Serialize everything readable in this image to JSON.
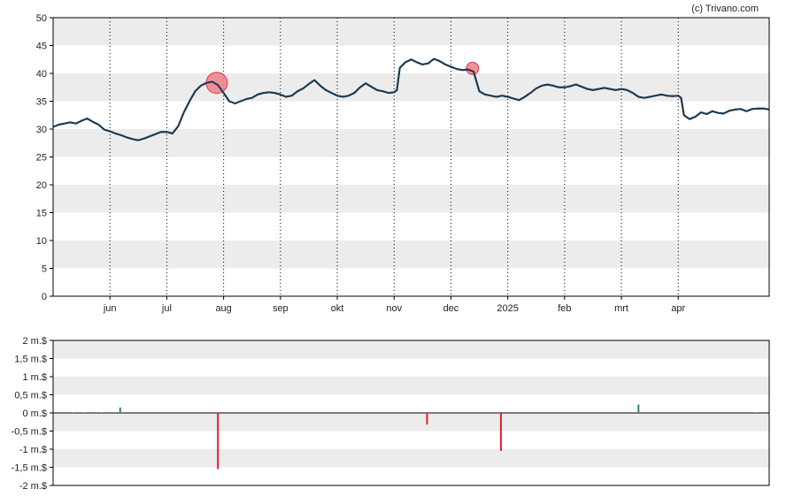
{
  "credit": "(c) Trivano.com",
  "colors": {
    "line": "#1b3a52",
    "band": "#ececec",
    "marker": "#f07f86",
    "marker_stroke": "#d63c49",
    "buy": "#2e8b57",
    "sell": "#e0202d",
    "axis": "#000000"
  },
  "chart_data": [
    {
      "type": "line",
      "title": "",
      "ylim": [
        0,
        50
      ],
      "yticks": [
        "0",
        "5",
        "10",
        "15",
        "20",
        "25",
        "30",
        "35",
        "40",
        "45",
        "50"
      ],
      "xlim": [
        0,
        12.6
      ],
      "xticks": [
        {
          "label": "jun",
          "x": 1.0
        },
        {
          "label": "jul",
          "x": 2.0
        },
        {
          "label": "aug",
          "x": 3.0
        },
        {
          "label": "sep",
          "x": 4.0
        },
        {
          "label": "okt",
          "x": 5.0
        },
        {
          "label": "nov",
          "x": 6.0
        },
        {
          "label": "dec",
          "x": 7.0
        },
        {
          "label": "2025",
          "x": 8.0
        },
        {
          "label": "feb",
          "x": 9.0
        },
        {
          "label": "mrt",
          "x": 10.0
        },
        {
          "label": "apr",
          "x": 11.0
        }
      ],
      "grid": "alternating horizontal bands with dotted vertical month lines",
      "series": [
        {
          "x": [
            0.0,
            0.1,
            0.2,
            0.3,
            0.4,
            0.5,
            0.6,
            0.7,
            0.8,
            0.9,
            1.0,
            1.1,
            1.2,
            1.3,
            1.4,
            1.5,
            1.6,
            1.7,
            1.8,
            1.9,
            2.0,
            2.1,
            2.2,
            2.3,
            2.4,
            2.5,
            2.6,
            2.7,
            2.8,
            2.9,
            3.0,
            3.1,
            3.2,
            3.3,
            3.4,
            3.5,
            3.6,
            3.7,
            3.8,
            3.9,
            4.0,
            4.1,
            4.2,
            4.3,
            4.4,
            4.5,
            4.6,
            4.7,
            4.8,
            4.9,
            5.0,
            5.1,
            5.2,
            5.3,
            5.4,
            5.5,
            5.6,
            5.7,
            5.8,
            5.9,
            6.0,
            6.05,
            6.1,
            6.2,
            6.3,
            6.4,
            6.5,
            6.6,
            6.7,
            6.8,
            6.9,
            7.0,
            7.1,
            7.2,
            7.3,
            7.4,
            7.5,
            7.6,
            7.7,
            7.8,
            7.9,
            8.0,
            8.1,
            8.2,
            8.3,
            8.4,
            8.5,
            8.6,
            8.7,
            8.8,
            8.9,
            9.0,
            9.1,
            9.2,
            9.3,
            9.4,
            9.5,
            9.6,
            9.7,
            9.8,
            9.9,
            10.0,
            10.1,
            10.2,
            10.3,
            10.4,
            10.5,
            10.6,
            10.7,
            10.8,
            10.9,
            11.0,
            11.05,
            11.1,
            11.2,
            11.3,
            11.4,
            11.5,
            11.6,
            11.7,
            11.8,
            11.9,
            12.0,
            12.1,
            12.2,
            12.3,
            12.4,
            12.5,
            12.6
          ],
          "values": [
            30.4,
            30.8,
            31.0,
            31.2,
            31.0,
            31.5,
            31.9,
            31.3,
            30.8,
            29.9,
            29.6,
            29.2,
            28.9,
            28.5,
            28.2,
            28.0,
            28.3,
            28.7,
            29.1,
            29.5,
            29.5,
            29.2,
            30.5,
            33.0,
            35.0,
            36.8,
            37.8,
            38.3,
            38.5,
            37.9,
            36.5,
            35.0,
            34.6,
            35.0,
            35.4,
            35.6,
            36.2,
            36.5,
            36.6,
            36.5,
            36.2,
            35.8,
            36.0,
            36.8,
            37.3,
            38.1,
            38.8,
            37.8,
            37.0,
            36.5,
            36.0,
            35.8,
            36.0,
            36.5,
            37.5,
            38.2,
            37.6,
            37.0,
            36.8,
            36.5,
            36.6,
            37.0,
            41.0,
            42.0,
            42.5,
            42.0,
            41.6,
            41.8,
            42.6,
            42.2,
            41.6,
            41.2,
            40.8,
            40.6,
            40.7,
            40.3,
            36.8,
            36.2,
            36.0,
            35.8,
            36.0,
            35.8,
            35.5,
            35.2,
            35.8,
            36.5,
            37.3,
            37.8,
            38.0,
            37.8,
            37.5,
            37.5,
            37.7,
            38.0,
            37.6,
            37.2,
            37.0,
            37.2,
            37.4,
            37.2,
            37.0,
            37.2,
            37.0,
            36.5,
            35.8,
            35.6,
            35.8,
            36.0,
            36.2,
            36.0,
            35.9,
            36.0,
            35.6,
            32.5,
            31.8,
            32.2,
            33.0,
            32.7,
            33.2,
            32.9,
            32.8,
            33.3,
            33.5,
            33.6,
            33.2,
            33.6,
            33.7,
            33.7,
            33.5
          ]
        }
      ],
      "markers": [
        {
          "x": 2.88,
          "y": 38.3,
          "size": "large"
        },
        {
          "x": 7.38,
          "y": 40.9,
          "size": "small"
        }
      ]
    },
    {
      "type": "bar",
      "title": "",
      "ylim": [
        -2,
        2
      ],
      "yticks": [
        "2 m.$",
        "1,5 m.$",
        "1 m.$",
        "0,5 m.$",
        "0 m.$",
        "-0,5 m.$",
        "-1 m.$",
        "-1,5 m.$",
        "-2 m.$"
      ],
      "xlim": [
        0,
        12.6
      ],
      "bars": [
        {
          "x": 0.15,
          "value": 0.02
        },
        {
          "x": 0.35,
          "value": 0.015
        },
        {
          "x": 0.55,
          "value": 0.01
        },
        {
          "x": 0.85,
          "value": 0.01
        },
        {
          "x": 1.18,
          "value": 0.15
        },
        {
          "x": 1.5,
          "value": 0.02
        },
        {
          "x": 2.9,
          "value": -1.55
        },
        {
          "x": 3.1,
          "value": 0.02
        },
        {
          "x": 6.58,
          "value": -0.32
        },
        {
          "x": 7.88,
          "value": -1.05
        },
        {
          "x": 10.3,
          "value": 0.23
        },
        {
          "x": 12.35,
          "value": 0.015
        }
      ]
    }
  ]
}
